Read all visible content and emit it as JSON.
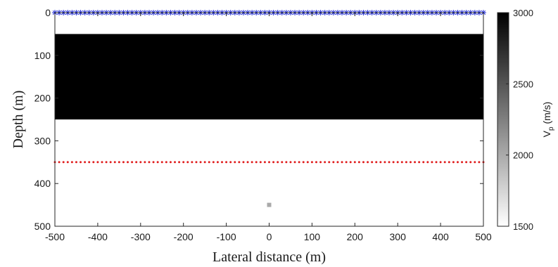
{
  "chart_data": {
    "type": "heatmap",
    "xlabel": "Lateral distance (m)",
    "ylabel": "Depth (m)",
    "xlim": [
      -500,
      500
    ],
    "ylim": [
      0,
      500
    ],
    "y_reversed": true,
    "xticks": [
      -500,
      -400,
      -300,
      -200,
      -100,
      0,
      100,
      200,
      300,
      400,
      500
    ],
    "yticks": [
      0,
      100,
      200,
      300,
      400,
      500
    ],
    "grid": false,
    "background_velocity": 1500,
    "layers": [
      {
        "depth_top": 50,
        "depth_bottom": 250,
        "vp": 3000
      }
    ],
    "anomaly": {
      "x": 0,
      "depth": 450,
      "vp": 2000
    },
    "sources": {
      "marker": "asterisk",
      "color": "#1f2bd6",
      "depth": 0,
      "x_start": -500,
      "x_end": 500,
      "spacing": 10
    },
    "receivers": {
      "marker": "dot",
      "color": "#e02020",
      "depth": 350,
      "x_start": -500,
      "x_end": 500,
      "spacing": 10
    },
    "colorbar": {
      "label": "V",
      "label_sub": "p",
      "label_unit": " (m/s)",
      "range": [
        1500,
        3000
      ],
      "ticks": [
        1500,
        2000,
        2500,
        3000
      ],
      "colormap": "gray-reversed",
      "low_color": "#ffffff",
      "high_color": "#000000"
    }
  }
}
